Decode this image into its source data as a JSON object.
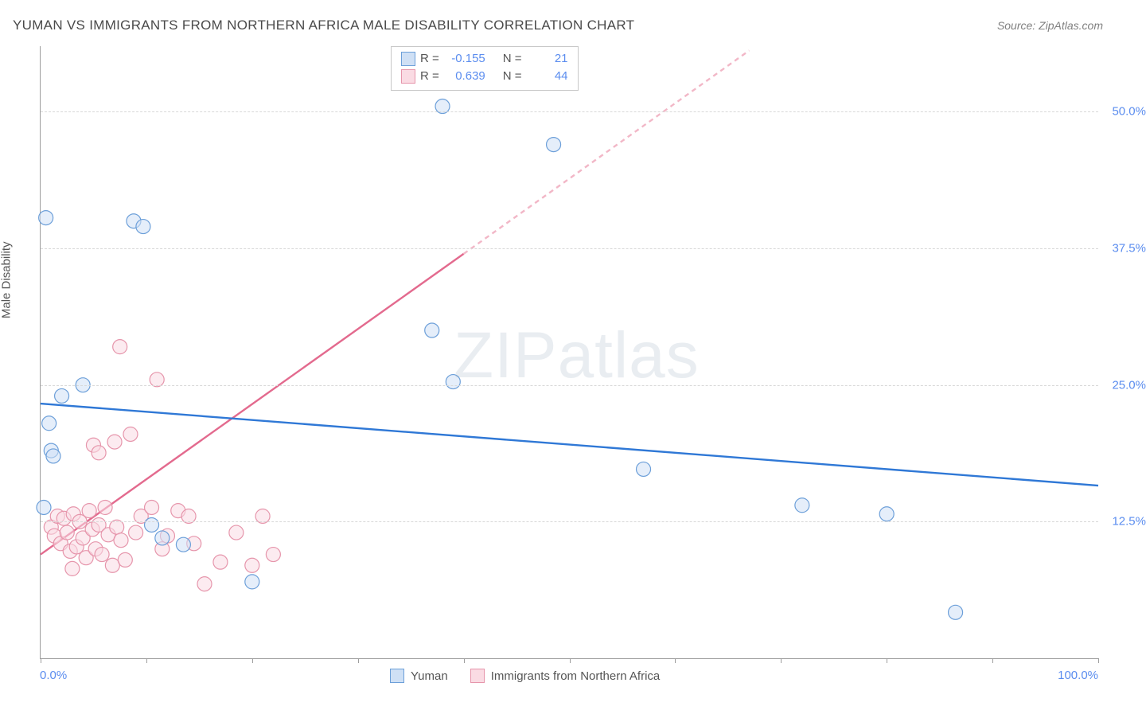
{
  "title": "YUMAN VS IMMIGRANTS FROM NORTHERN AFRICA MALE DISABILITY CORRELATION CHART",
  "source": "Source: ZipAtlas.com",
  "watermark_bold": "ZIP",
  "watermark_thin": "atlas",
  "yaxis_title": "Male Disability",
  "xaxis": {
    "min_label": "0.0%",
    "max_label": "100.0%",
    "min": 0,
    "max": 100,
    "tick_positions": [
      0,
      10,
      20,
      30,
      40,
      50,
      60,
      70,
      80,
      90,
      100
    ]
  },
  "yaxis": {
    "min": 0,
    "max": 56,
    "gridlines": [
      12.5,
      25.0,
      37.5,
      50.0
    ],
    "tick_labels": [
      "12.5%",
      "25.0%",
      "37.5%",
      "50.0%"
    ]
  },
  "colors": {
    "blue_fill": "#cfe0f5",
    "blue_stroke": "#6c9fd9",
    "blue_line": "#2f78d6",
    "pink_fill": "#fadbe3",
    "pink_stroke": "#e695ab",
    "pink_line": "#e36a8e",
    "pink_dash": "#f2b7c7",
    "text_blue": "#5b8def",
    "grid": "#d8d8d8",
    "axis": "#9e9e9e"
  },
  "marker_radius": 9,
  "marker_opacity": 0.55,
  "line_width": 2.4,
  "stats_legend": {
    "rows": [
      {
        "swatch": "blue",
        "r": "-0.155",
        "n": "21"
      },
      {
        "swatch": "pink",
        "r": "0.639",
        "n": "44"
      }
    ],
    "r_label": "R  =",
    "n_label": "N  ="
  },
  "series_legend": {
    "items": [
      {
        "swatch": "blue",
        "label": "Yuman"
      },
      {
        "swatch": "pink",
        "label": "Immigrants from Northern Africa"
      }
    ]
  },
  "series": {
    "blue": {
      "trend": {
        "x1": 0,
        "y1": 23.3,
        "x2": 100,
        "y2": 15.8
      },
      "points": [
        [
          0.5,
          40.3
        ],
        [
          2.0,
          24.0
        ],
        [
          0.8,
          21.5
        ],
        [
          1.0,
          19.0
        ],
        [
          1.2,
          18.5
        ],
        [
          0.3,
          13.8
        ],
        [
          4.0,
          25.0
        ],
        [
          8.8,
          40.0
        ],
        [
          9.7,
          39.5
        ],
        [
          10.5,
          12.2
        ],
        [
          11.5,
          11.0
        ],
        [
          13.5,
          10.4
        ],
        [
          20.0,
          7.0
        ],
        [
          37.0,
          30.0
        ],
        [
          39.0,
          25.3
        ],
        [
          48.5,
          47.0
        ],
        [
          57.0,
          17.3
        ],
        [
          72.0,
          14.0
        ],
        [
          80.0,
          13.2
        ],
        [
          86.5,
          4.2
        ],
        [
          38.0,
          50.5
        ]
      ]
    },
    "pink": {
      "trend_solid": {
        "x1": 0,
        "y1": 9.5,
        "x2": 40,
        "y2": 37.0
      },
      "trend_dash": {
        "x1": 40,
        "y1": 37.0,
        "x2": 67,
        "y2": 55.6
      },
      "points": [
        [
          1.0,
          12.0
        ],
        [
          1.3,
          11.2
        ],
        [
          1.6,
          13.0
        ],
        [
          1.9,
          10.5
        ],
        [
          2.2,
          12.8
        ],
        [
          2.5,
          11.5
        ],
        [
          2.8,
          9.8
        ],
        [
          3.1,
          13.2
        ],
        [
          3.4,
          10.2
        ],
        [
          3.7,
          12.5
        ],
        [
          4.0,
          11.0
        ],
        [
          4.3,
          9.2
        ],
        [
          4.6,
          13.5
        ],
        [
          4.9,
          11.8
        ],
        [
          5.2,
          10.0
        ],
        [
          5.5,
          12.2
        ],
        [
          5.8,
          9.5
        ],
        [
          6.1,
          13.8
        ],
        [
          6.4,
          11.3
        ],
        [
          6.8,
          8.5
        ],
        [
          7.2,
          12.0
        ],
        [
          7.6,
          10.8
        ],
        [
          8.0,
          9.0
        ],
        [
          5.0,
          19.5
        ],
        [
          5.5,
          18.8
        ],
        [
          7.0,
          19.8
        ],
        [
          7.5,
          28.5
        ],
        [
          9.0,
          11.5
        ],
        [
          9.5,
          13.0
        ],
        [
          10.5,
          13.8
        ],
        [
          11.0,
          25.5
        ],
        [
          11.5,
          10.0
        ],
        [
          12.0,
          11.2
        ],
        [
          13.0,
          13.5
        ],
        [
          14.0,
          13.0
        ],
        [
          14.5,
          10.5
        ],
        [
          15.5,
          6.8
        ],
        [
          17.0,
          8.8
        ],
        [
          18.5,
          11.5
        ],
        [
          20.0,
          8.5
        ],
        [
          21.0,
          13.0
        ],
        [
          22.0,
          9.5
        ],
        [
          8.5,
          20.5
        ],
        [
          3.0,
          8.2
        ]
      ]
    }
  }
}
